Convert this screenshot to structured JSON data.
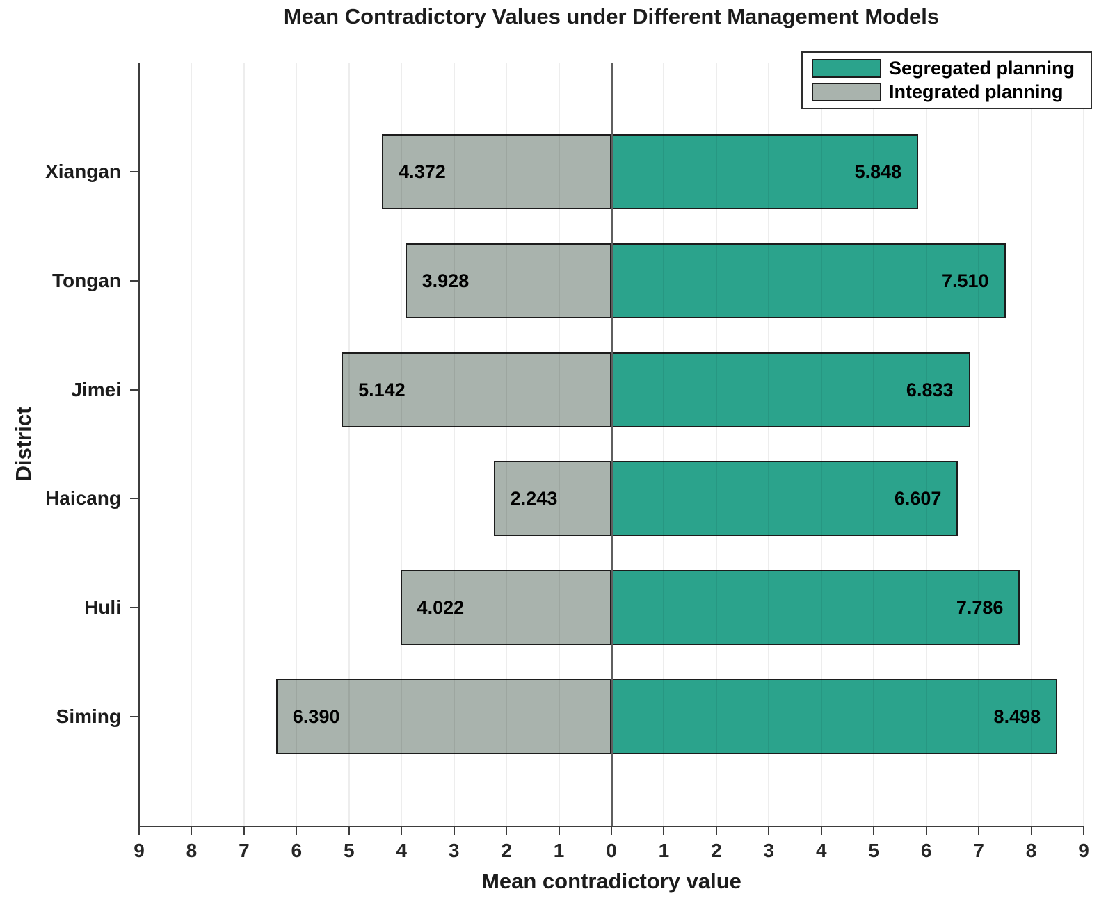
{
  "title": "Mean Contradictory Values under Different Management Models",
  "chart_data": {
    "type": "bar",
    "variant": "diverging-horizontal",
    "title": "Mean Contradictory Values under Different Management Models",
    "xlabel": "Mean contradictory value",
    "ylabel": "District",
    "categories": [
      "Xiangan",
      "Tongan",
      "Jimei",
      "Haicang",
      "Huli",
      "Siming"
    ],
    "series": [
      {
        "name": "Segregated planning",
        "side": "right",
        "color": "#2ba38c",
        "values": [
          5.848,
          7.51,
          6.833,
          6.607,
          7.786,
          8.498
        ],
        "labels": [
          "5.848",
          "7.510",
          "6.833",
          "6.607",
          "7.786",
          "8.498"
        ]
      },
      {
        "name": "Integrated planning",
        "side": "left",
        "color": "#a9b3ad",
        "values": [
          4.372,
          3.928,
          5.142,
          2.243,
          4.022,
          6.39
        ],
        "labels": [
          "4.372",
          "3.928",
          "5.142",
          "2.243",
          "4.022",
          "6.390"
        ]
      }
    ],
    "xlim": [
      -9,
      9
    ],
    "xtick_labels": [
      "9",
      "8",
      "7",
      "6",
      "5",
      "4",
      "3",
      "2",
      "1",
      "0",
      "1",
      "2",
      "3",
      "4",
      "5",
      "6",
      "7",
      "8",
      "9"
    ],
    "grid": true,
    "legend_position": "top-right"
  },
  "legend": {
    "items": [
      {
        "label": "Segregated planning",
        "color": "#2ba38c"
      },
      {
        "label": "Integrated planning",
        "color": "#a9b3ad"
      }
    ]
  },
  "colors": {
    "segregated": "#2ba38c",
    "integrated": "#a9b3ad",
    "bar_border": "#1c1c1c",
    "zero_line": "#5f5f5f",
    "axis": "#3d3d3d",
    "text": "#1a1a1a",
    "background": "#ffffff"
  }
}
